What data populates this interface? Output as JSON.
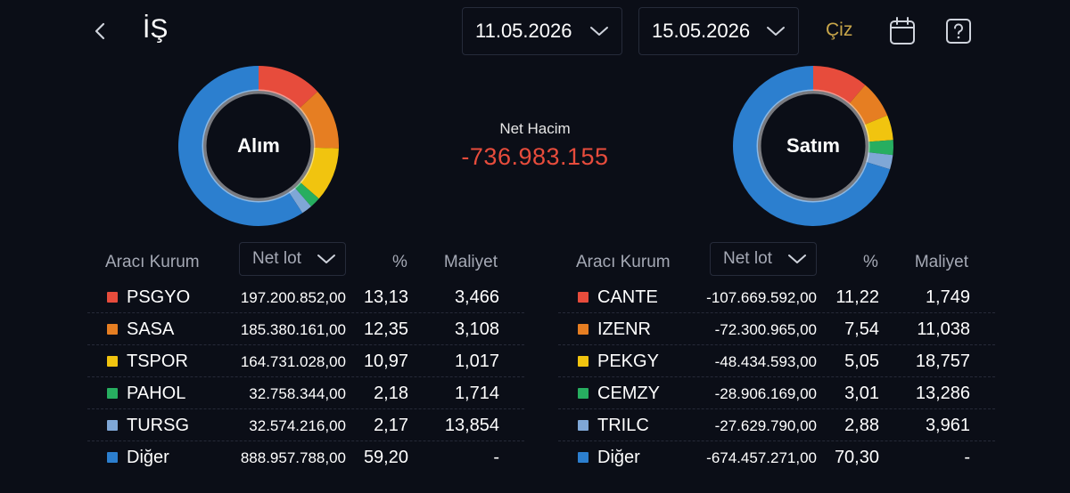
{
  "header": {
    "title": "İŞ",
    "start_date": "11.05.2026",
    "end_date": "15.05.2026",
    "draw_label": "Çiz",
    "icons": [
      "back-icon",
      "chevron-down-icon",
      "calendar-icon",
      "help-icon"
    ]
  },
  "summary": {
    "net_label": "Net Hacim",
    "net_value": "-736.983.155",
    "net_color": "#e74c3c"
  },
  "buy": {
    "donut_label": "Alım",
    "columns": {
      "broker": "Aracı Kurum",
      "lot": "Net lot",
      "pct": "%",
      "cost": "Maliyet"
    },
    "rows": [
      {
        "name": "PSGYO",
        "lot": "197.200.852,00",
        "pct": "13,13",
        "cost": "3,466",
        "color": "#e74c3c",
        "share": 13.13
      },
      {
        "name": "SASA",
        "lot": "185.380.161,00",
        "pct": "12,35",
        "cost": "3,108",
        "color": "#e67e22",
        "share": 12.35
      },
      {
        "name": "TSPOR",
        "lot": "164.731.028,00",
        "pct": "10,97",
        "cost": "1,017",
        "color": "#f1c40f",
        "share": 10.97
      },
      {
        "name": "PAHOL",
        "lot": "32.758.344,00",
        "pct": "2,18",
        "cost": "1,714",
        "color": "#27ae60",
        "share": 2.18
      },
      {
        "name": "TURSG",
        "lot": "32.574.216,00",
        "pct": "2,17",
        "cost": "13,854",
        "color": "#7fa7d6",
        "share": 2.17
      },
      {
        "name": "Diğer",
        "lot": "888.957.788,00",
        "pct": "59,20",
        "cost": "-",
        "color": "#2c7fcf",
        "share": 59.2
      }
    ]
  },
  "sell": {
    "donut_label": "Satım",
    "columns": {
      "broker": "Aracı Kurum",
      "lot": "Net lot",
      "pct": "%",
      "cost": "Maliyet"
    },
    "rows": [
      {
        "name": "CANTE",
        "lot": "-107.669.592,00",
        "pct": "11,22",
        "cost": "1,749",
        "color": "#e74c3c",
        "share": 11.22
      },
      {
        "name": "IZENR",
        "lot": "-72.300.965,00",
        "pct": "7,54",
        "cost": "11,038",
        "color": "#e67e22",
        "share": 7.54
      },
      {
        "name": "PEKGY",
        "lot": "-48.434.593,00",
        "pct": "5,05",
        "cost": "18,757",
        "color": "#f1c40f",
        "share": 5.05
      },
      {
        "name": "CEMZY",
        "lot": "-28.906.169,00",
        "pct": "3,01",
        "cost": "13,286",
        "color": "#27ae60",
        "share": 3.01
      },
      {
        "name": "TRILC",
        "lot": "-27.629.790,00",
        "pct": "2,88",
        "cost": "3,961",
        "color": "#7fa7d6",
        "share": 2.88
      },
      {
        "name": "Diğer",
        "lot": "-674.457.271,00",
        "pct": "70,30",
        "cost": "-",
        "color": "#2c7fcf",
        "share": 70.3
      }
    ]
  }
}
